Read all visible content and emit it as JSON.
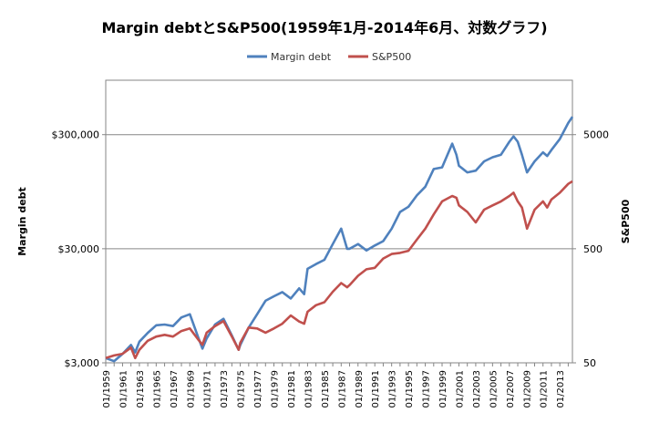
{
  "chart_data": {
    "type": "line",
    "title": "Margin debtとS&P500(1959年1月-2014年6月、対数グラフ)",
    "ylabel": "Margin debt",
    "y2label": "S&P500",
    "yscale": "log",
    "y2scale": "log",
    "ylim": [
      3000,
      900000
    ],
    "y2lim": [
      50,
      15000
    ],
    "yticks": [
      "$3,000",
      "$30,000",
      "$300,000"
    ],
    "yticks_values": [
      3000,
      30000,
      300000
    ],
    "y2ticks": [
      "50",
      "500",
      "5000"
    ],
    "y2ticks_values": [
      50,
      500,
      5000
    ],
    "grid": "horizontal",
    "legend_position": "top-center",
    "x_start": 1959,
    "x_end": 2014.5,
    "categories": [
      "01/1959",
      "01/1961",
      "01/1963",
      "01/1965",
      "01/1967",
      "01/1969",
      "01/1971",
      "01/1973",
      "01/1975",
      "01/1977",
      "01/1979",
      "01/1981",
      "01/1983",
      "01/1985",
      "01/1987",
      "01/1989",
      "01/1991",
      "01/1993",
      "01/1995",
      "01/1997",
      "01/1999",
      "01/2001",
      "01/2003",
      "01/2005",
      "01/2007",
      "01/2009",
      "01/2011",
      "01/2013"
    ],
    "series": [
      {
        "name": "Margin debt",
        "axis": "left",
        "color": "#4f81bd",
        "x": [
          1959,
          1960,
          1961,
          1962,
          1962.5,
          1963,
          1964,
          1965,
          1966,
          1967,
          1968,
          1969,
          1970,
          1970.5,
          1971,
          1972,
          1973,
          1974,
          1974.8,
          1975,
          1976,
          1977,
          1978,
          1979,
          1980,
          1981,
          1982,
          1982.6,
          1983,
          1984,
          1985,
          1986,
          1987,
          1987.7,
          1988,
          1989,
          1990,
          1991,
          1992,
          1993,
          1994,
          1995,
          1996,
          1997,
          1998,
          1999,
          2000.2,
          2000.7,
          2001,
          2002,
          2003,
          2004,
          2005,
          2006,
          2007,
          2007.5,
          2008,
          2008.5,
          2009.1,
          2010,
          2011,
          2011.5,
          2012,
          2013,
          2014,
          2014.5
        ],
        "y": [
          3300,
          3100,
          3600,
          4300,
          3700,
          4600,
          5500,
          6400,
          6500,
          6300,
          7500,
          8000,
          5000,
          4000,
          4900,
          6500,
          7300,
          5200,
          3900,
          4300,
          6100,
          8000,
          10500,
          11500,
          12500,
          11000,
          13500,
          12000,
          20000,
          22000,
          24000,
          33000,
          45000,
          30000,
          30000,
          33000,
          29000,
          32000,
          35000,
          45000,
          63000,
          70000,
          88000,
          105000,
          150000,
          155000,
          250000,
          200000,
          160000,
          140000,
          145000,
          175000,
          190000,
          200000,
          260000,
          290000,
          260000,
          200000,
          140000,
          175000,
          210000,
          195000,
          220000,
          275000,
          380000,
          430000
        ]
      },
      {
        "name": "S&P500",
        "axis": "right",
        "color": "#c0504d",
        "x": [
          1959,
          1960,
          1961,
          1962,
          1962.5,
          1963,
          1964,
          1965,
          1966,
          1967,
          1968,
          1969,
          1970,
          1970.5,
          1971,
          1972,
          1973,
          1974,
          1974.8,
          1975,
          1976,
          1977,
          1978,
          1979,
          1980,
          1981,
          1982,
          1982.6,
          1983,
          1984,
          1985,
          1986,
          1987,
          1987.7,
          1988,
          1989,
          1990,
          1991,
          1992,
          1993,
          1994,
          1995,
          1996,
          1997,
          1998,
          1999,
          2000.2,
          2000.7,
          2001,
          2002,
          2003,
          2004,
          2005,
          2006,
          2007,
          2007.5,
          2008,
          2008.5,
          2009.1,
          2010,
          2011,
          2011.5,
          2012,
          2013,
          2014,
          2014.5
        ],
        "y": [
          55,
          58,
          60,
          68,
          55,
          65,
          78,
          85,
          88,
          85,
          95,
          100,
          80,
          72,
          92,
          105,
          116,
          85,
          65,
          75,
          102,
          100,
          92,
          100,
          110,
          130,
          115,
          110,
          140,
          160,
          170,
          210,
          250,
          230,
          240,
          290,
          330,
          340,
          410,
          450,
          460,
          480,
          600,
          750,
          1000,
          1300,
          1450,
          1400,
          1200,
          1050,
          850,
          1100,
          1200,
          1300,
          1450,
          1550,
          1300,
          1150,
          750,
          1100,
          1300,
          1150,
          1350,
          1550,
          1850,
          1950
        ]
      }
    ]
  }
}
